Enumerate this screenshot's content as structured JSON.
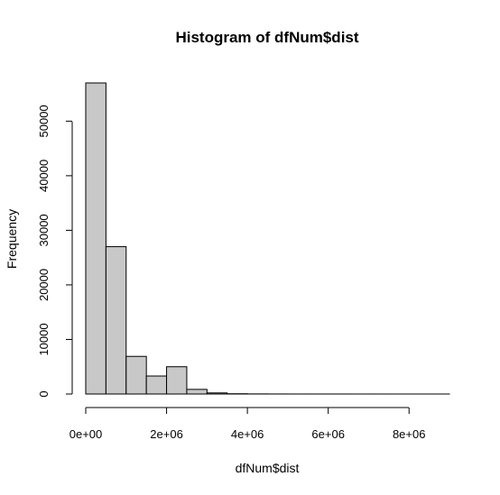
{
  "chart_data": {
    "type": "bar",
    "title": "Histogram of dfNum$dist",
    "xlabel": "dfNum$dist",
    "ylabel": "Frequency",
    "bin_width": 500000,
    "bins": [
      {
        "x0": 0,
        "x1": 500000,
        "count": 57000
      },
      {
        "x0": 500000,
        "x1": 1000000,
        "count": 27000
      },
      {
        "x0": 1000000,
        "x1": 1500000,
        "count": 6900
      },
      {
        "x0": 1500000,
        "x1": 2000000,
        "count": 3300
      },
      {
        "x0": 2000000,
        "x1": 2500000,
        "count": 5000
      },
      {
        "x0": 2500000,
        "x1": 3000000,
        "count": 850
      },
      {
        "x0": 3000000,
        "x1": 3500000,
        "count": 200
      },
      {
        "x0": 3500000,
        "x1": 4000000,
        "count": 50
      },
      {
        "x0": 4000000,
        "x1": 4500000,
        "count": 20
      },
      {
        "x0": 4500000,
        "x1": 5000000,
        "count": 10
      },
      {
        "x0": 5000000,
        "x1": 5500000,
        "count": 5
      },
      {
        "x0": 5500000,
        "x1": 6000000,
        "count": 5
      },
      {
        "x0": 6000000,
        "x1": 6500000,
        "count": 3
      },
      {
        "x0": 6500000,
        "x1": 7000000,
        "count": 2
      },
      {
        "x0": 7000000,
        "x1": 7500000,
        "count": 2
      },
      {
        "x0": 7500000,
        "x1": 8000000,
        "count": 1
      },
      {
        "x0": 8000000,
        "x1": 8500000,
        "count": 1
      },
      {
        "x0": 8500000,
        "x1": 9000000,
        "count": 1
      }
    ],
    "xlim": [
      0,
      9000000
    ],
    "ylim": [
      0,
      57000
    ],
    "xticks": [
      0,
      2000000,
      4000000,
      6000000,
      8000000
    ],
    "xtick_labels": [
      "0e+00",
      "2e+06",
      "4e+06",
      "6e+06",
      "8e+06"
    ],
    "yticks": [
      0,
      10000,
      20000,
      30000,
      40000,
      50000
    ],
    "ytick_labels": [
      "0",
      "10000",
      "20000",
      "30000",
      "40000",
      "50000"
    ],
    "grid": false,
    "legend": "none",
    "colors": {
      "bar_fill": "#c8c8c8",
      "bar_stroke": "#000000"
    }
  }
}
